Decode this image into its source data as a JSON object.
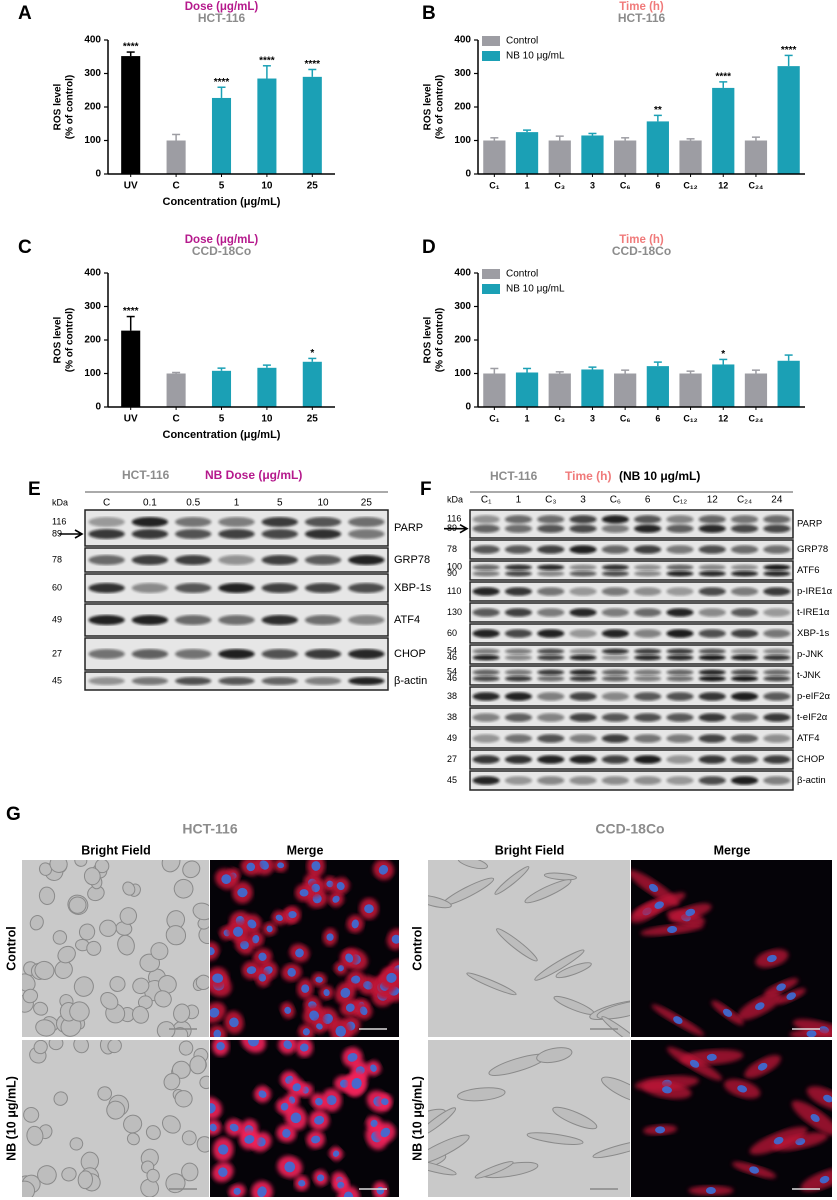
{
  "chart_data": [
    {
      "type": "bar",
      "panel": "A",
      "title": "Dose (μg/mL)",
      "title_color": "#b5198c",
      "subtitle": "HCT-116",
      "subtitle_color": "#8c8c8c",
      "ylabel": [
        "ROS level",
        "(% of control)"
      ],
      "xlabel": "Concentration (μg/mL)",
      "categories": [
        "UV",
        "C",
        "5",
        "10",
        "25"
      ],
      "values": [
        352,
        100,
        227,
        285,
        290
      ],
      "errors": [
        12,
        18,
        32,
        38,
        22
      ],
      "colors": [
        "#000000",
        "#9d9da3",
        "#1ba0b5",
        "#1ba0b5",
        "#1ba0b5"
      ],
      "annotations": [
        "****",
        null,
        "****",
        "****",
        "****"
      ],
      "ylim": [
        0,
        400
      ],
      "yticks": [
        0,
        100,
        200,
        300,
        400
      ]
    },
    {
      "type": "bar",
      "panel": "B",
      "title": "Time (h)",
      "title_color": "#f07a7a",
      "subtitle": "HCT-116",
      "subtitle_color": "#8c8c8c",
      "ylabel": [
        "ROS level",
        "(% of control)"
      ],
      "categories": [
        "C₁",
        "1",
        "C₃",
        "3",
        "C₆",
        "6",
        "C₁₂",
        "12",
        "C₂₄",
        null
      ],
      "series": [
        {
          "name": "Control",
          "color": "#9d9da3",
          "values": [
            100,
            null,
            100,
            null,
            100,
            null,
            100,
            null,
            100,
            null
          ],
          "errors": [
            8,
            null,
            13,
            null,
            8,
            null,
            5,
            null,
            10,
            null
          ]
        },
        {
          "name": "NB 10 μg/mL",
          "color": "#1ba0b5",
          "values": [
            null,
            125,
            null,
            115,
            null,
            157,
            null,
            257,
            null,
            322
          ],
          "errors": [
            null,
            6,
            null,
            6,
            null,
            18,
            null,
            18,
            null,
            32
          ]
        }
      ],
      "annotations": [
        null,
        null,
        null,
        null,
        null,
        "**",
        null,
        "****",
        null,
        "****"
      ],
      "legend": "upper left",
      "ylim": [
        0,
        400
      ],
      "yticks": [
        0,
        100,
        200,
        300,
        400
      ]
    },
    {
      "type": "bar",
      "panel": "C",
      "title": "Dose (μg/mL)",
      "title_color": "#b5198c",
      "subtitle": "CCD-18Co",
      "subtitle_color": "#8c8c8c",
      "ylabel": [
        "ROS level",
        "(% of control)"
      ],
      "xlabel": "Concentration (μg/mL)",
      "categories": [
        "UV",
        "C",
        "5",
        "10",
        "25"
      ],
      "values": [
        228,
        100,
        108,
        117,
        135
      ],
      "errors": [
        42,
        3,
        8,
        8,
        10
      ],
      "colors": [
        "#000000",
        "#9d9da3",
        "#1ba0b5",
        "#1ba0b5",
        "#1ba0b5"
      ],
      "annotations": [
        "****",
        null,
        null,
        null,
        "*"
      ],
      "ylim": [
        0,
        400
      ],
      "yticks": [
        0,
        100,
        200,
        300,
        400
      ]
    },
    {
      "type": "bar",
      "panel": "D",
      "title": "Time (h)",
      "title_color": "#f07a7a",
      "subtitle": "CCD-18Co",
      "subtitle_color": "#8c8c8c",
      "ylabel": [
        "ROS level",
        "(% of control)"
      ],
      "categories": [
        "C₁",
        "1",
        "C₃",
        "3",
        "C₆",
        "6",
        "C₁₂",
        "12",
        "C₂₄",
        null
      ],
      "series": [
        {
          "name": "Control",
          "color": "#9d9da3",
          "values": [
            100,
            null,
            100,
            null,
            100,
            null,
            100,
            null,
            100,
            null
          ],
          "errors": [
            15,
            null,
            5,
            null,
            10,
            null,
            7,
            null,
            10,
            null
          ]
        },
        {
          "name": "NB 10 μg/mL",
          "color": "#1ba0b5",
          "values": [
            null,
            103,
            null,
            112,
            null,
            122,
            null,
            127,
            null,
            138
          ],
          "errors": [
            null,
            12,
            null,
            7,
            null,
            12,
            null,
            15,
            null,
            17
          ]
        }
      ],
      "annotations": [
        null,
        null,
        null,
        null,
        null,
        null,
        null,
        "*",
        null,
        null
      ],
      "legend": "upper left",
      "ylim": [
        0,
        400
      ],
      "yticks": [
        0,
        100,
        200,
        300,
        400
      ]
    }
  ],
  "blot_e": {
    "panel": "E",
    "cell_line": "HCT-116",
    "treatment": "NB Dose (μg/mL)",
    "kda_label": "kDa",
    "lanes": [
      "C",
      "0.1",
      "0.5",
      "1",
      "5",
      "10",
      "25"
    ],
    "rows": [
      {
        "kda": [
          "116",
          "89"
        ],
        "protein": "PARP"
      },
      {
        "kda": [
          "78"
        ],
        "protein": "GRP78"
      },
      {
        "kda": [
          "60"
        ],
        "protein": "XBP-1s"
      },
      {
        "kda": [
          "49"
        ],
        "protein": "ATF4"
      },
      {
        "kda": [
          "27"
        ],
        "protein": "CHOP"
      },
      {
        "kda": [
          "45"
        ],
        "protein": "β-actin"
      }
    ]
  },
  "blot_f": {
    "panel": "F",
    "cell_line": "HCT-116",
    "treatment": "Time (h)",
    "condition": "(NB 10 μg/mL)",
    "kda_label": "kDa",
    "lanes": [
      "C₁",
      "1",
      "C₃",
      "3",
      "C₆",
      "6",
      "C₁₂",
      "12",
      "C₂₄",
      "24"
    ],
    "rows": [
      {
        "kda": [
          "116",
          "89"
        ],
        "protein": "PARP"
      },
      {
        "kda": [
          "78"
        ],
        "protein": "GRP78"
      },
      {
        "kda": [
          "100",
          "90"
        ],
        "protein": "ATF6"
      },
      {
        "kda": [
          "110"
        ],
        "protein": "p-IRE1α"
      },
      {
        "kda": [
          "130"
        ],
        "protein": "t-IRE1α"
      },
      {
        "kda": [
          "60"
        ],
        "protein": "XBP-1s"
      },
      {
        "kda": [
          "54",
          "46"
        ],
        "protein": "p-JNK"
      },
      {
        "kda": [
          "54",
          "46"
        ],
        "protein": "t-JNK"
      },
      {
        "kda": [
          "38"
        ],
        "protein": "p-eIF2α"
      },
      {
        "kda": [
          "38"
        ],
        "protein": "t-eIF2α"
      },
      {
        "kda": [
          "49"
        ],
        "protein": "ATF4"
      },
      {
        "kda": [
          "27"
        ],
        "protein": "CHOP"
      },
      {
        "kda": [
          "45"
        ],
        "protein": "β-actin"
      }
    ]
  },
  "microscopy": {
    "panel": "G",
    "cell_lines": [
      "HCT-116",
      "CCD-18Co"
    ],
    "columns": [
      "Bright Field",
      "Merge"
    ],
    "rows": [
      "Control",
      "NB (10 μg/mL)"
    ]
  }
}
